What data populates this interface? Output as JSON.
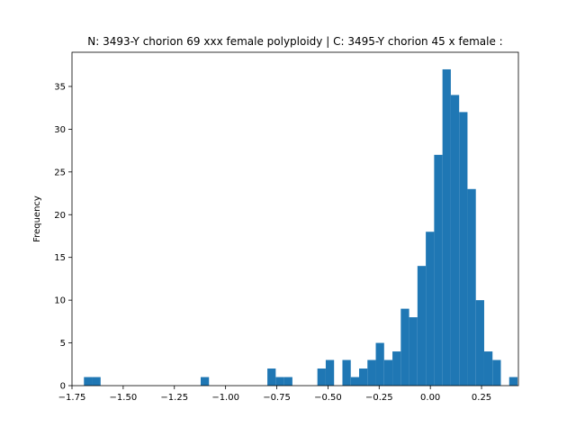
{
  "chart_data": {
    "type": "bar",
    "title": "N: 3493-Y chorion 69 xxx female polyploidy | C: 3495-Y chorion 45 x female :",
    "xlabel": "",
    "ylabel": "Frequency",
    "xlim": [
      -1.75,
      0.43
    ],
    "ylim": [
      0,
      39
    ],
    "xticks": [
      -1.75,
      -1.5,
      -1.25,
      -1.0,
      -0.75,
      -0.5,
      -0.25,
      0.0,
      0.25
    ],
    "xtick_labels": [
      "−1.75",
      "−1.50",
      "−1.25",
      "−1.00",
      "−0.75",
      "−0.50",
      "−0.25",
      "0.00",
      "0.25"
    ],
    "yticks": [
      0,
      5,
      10,
      15,
      20,
      25,
      30,
      35
    ],
    "ytick_labels": [
      "0",
      "5",
      "10",
      "15",
      "20",
      "25",
      "30",
      "35"
    ],
    "bar_color": "#1f77b4",
    "bin_start": -1.6917,
    "bin_width": 0.04072,
    "counts": [
      1,
      1,
      0,
      0,
      0,
      0,
      0,
      0,
      0,
      0,
      0,
      0,
      0,
      0,
      1,
      0,
      0,
      0,
      0,
      0,
      0,
      0,
      2,
      1,
      1,
      0,
      0,
      0,
      2,
      3,
      0,
      3,
      1,
      2,
      3,
      5,
      3,
      4,
      9,
      8,
      14,
      18,
      27,
      37,
      34,
      32,
      23,
      10,
      4,
      3,
      0,
      1
    ],
    "grid": false,
    "legend": "none"
  }
}
